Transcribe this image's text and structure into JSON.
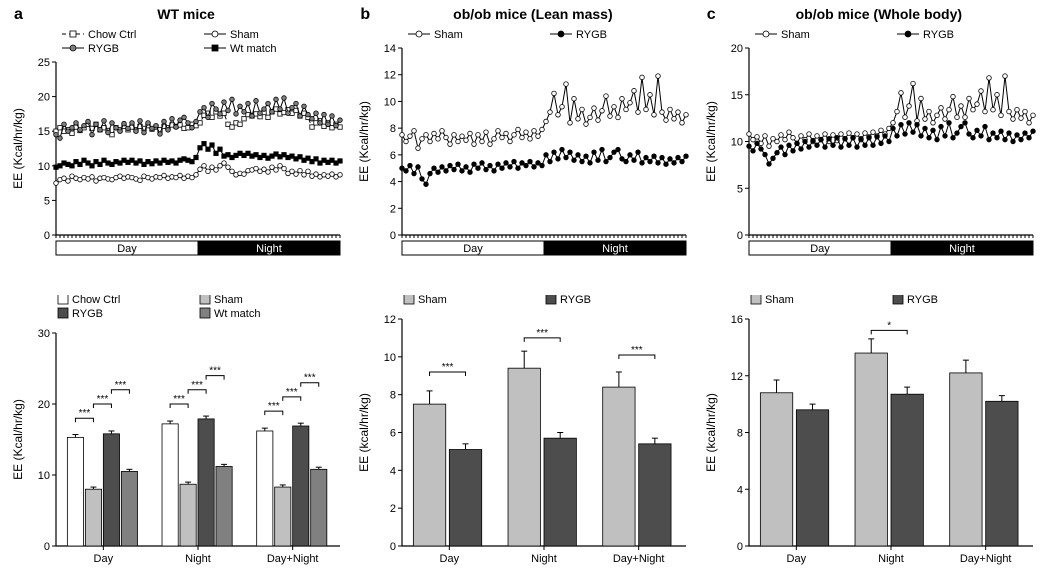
{
  "colors": {
    "white": "#ffffff",
    "black": "#000000",
    "light_gray": "#c0c0c0",
    "mid_gray": "#808080",
    "dark_gray": "#4d4d4d"
  },
  "panels": {
    "a": {
      "label": "a",
      "title": "WT mice",
      "line": {
        "ylabel": "EE (Kcal/hr/kg)",
        "ylim": [
          0,
          25
        ],
        "ytick_step": 5,
        "n_points": 72,
        "phase_labels": [
          "Day",
          "Night"
        ],
        "series": [
          {
            "name": "Chow Ctrl",
            "color": "#ffffff",
            "stroke": "#000000",
            "marker": "square",
            "dash": "4 3",
            "y": [
              15,
              15.5,
              15,
              15.2,
              14.7,
              15.6,
              15.1,
              15.5,
              16,
              15.4,
              16,
              15.2,
              15.5,
              15.1,
              14.5,
              15.5,
              15.2,
              15.7,
              15.2,
              15.6,
              15.2,
              15.7,
              15.4,
              15.8,
              15.3,
              15.6,
              15.2,
              15.7,
              15.5,
              15.9,
              15.7,
              15.9,
              15.4,
              15.5,
              16,
              15.8,
              16.2,
              17.3,
              17.6,
              17,
              17.8,
              17.2,
              17.6,
              16,
              15.6,
              16.2,
              16,
              16.8,
              17.4,
              17.2,
              17.5,
              17.1,
              17.7,
              17,
              17.8,
              18.2,
              17.5,
              17.7,
              18.1,
              17.6,
              18,
              17.2,
              17.6,
              17,
              15.6,
              16.2,
              16.5,
              15.7,
              16.2,
              15.5,
              16,
              15.6
            ]
          },
          {
            "name": "Sham",
            "color": "#ffffff",
            "stroke": "#000000",
            "marker": "circle",
            "dash": "none",
            "y": [
              7.5,
              8,
              8.2,
              7.8,
              8.5,
              8.2,
              8,
              8.3,
              8.1,
              8.4,
              7.8,
              8.2,
              8.3,
              8.1,
              8,
              8.3,
              8.5,
              8.2,
              8.4,
              8.3,
              8.1,
              7.9,
              8.5,
              8.3,
              8.1,
              8.4,
              8.3,
              8.6,
              8.2,
              8.4,
              8.3,
              8.6,
              8.2,
              8.5,
              8.3,
              8.7,
              9.5,
              10,
              9.2,
              9.8,
              9.4,
              10,
              10.4,
              9.8,
              9.2,
              8.7,
              8.9,
              8.8,
              9.3,
              9.4,
              9.6,
              9.2,
              9.5,
              9.1,
              9.8,
              9.4,
              10,
              9.6,
              8.9,
              9.2,
              8.8,
              9.3,
              8.7,
              9.2,
              8.5,
              8.8,
              8.4,
              8.7,
              8.5,
              8.8,
              8.4,
              8.7
            ]
          },
          {
            "name": "RYGB",
            "color": "#808080",
            "stroke": "#000000",
            "marker": "circle",
            "dash": "none",
            "y": [
              14.5,
              14,
              16,
              15,
              15.5,
              16.2,
              15.2,
              15.8,
              16.4,
              14.5,
              16,
              15.2,
              16.5,
              14.8,
              16.2,
              15.5,
              15,
              16.1,
              15.4,
              16.2,
              15,
              16.5,
              14.8,
              16.2,
              15.4,
              15.8,
              14.6,
              16.4,
              15.2,
              16.8,
              15.6,
              16.6,
              17,
              16.2,
              15.5,
              16.4,
              17.8,
              18.4,
              17,
              19,
              18.2,
              17.5,
              19.2,
              18,
              19.6,
              17.5,
              18.6,
              17.8,
              19,
              17.2,
              19.4,
              17.6,
              18.2,
              19,
              17.8,
              19.6,
              18.2,
              19.8,
              17.6,
              18.4,
              19,
              17.2,
              18.6,
              17.4,
              16.8,
              17.6,
              16.2,
              17.4,
              16,
              17.2,
              15.8,
              16.6
            ]
          },
          {
            "name": "Wt match",
            "color": "#000000",
            "stroke": "#000000",
            "marker": "square",
            "dash": "none",
            "y": [
              9.8,
              10,
              10.4,
              10.2,
              10,
              10.6,
              10.2,
              10.8,
              10.4,
              10,
              10.6,
              10.2,
              10.8,
              10.4,
              10.2,
              10.6,
              10.4,
              10.8,
              10.5,
              10.8,
              10.4,
              10.7,
              10.2,
              10.6,
              10.3,
              10.7,
              10.4,
              10.8,
              10.5,
              10.7,
              10.4,
              10.8,
              11,
              10.8,
              10.6,
              11.2,
              12.6,
              13.2,
              12.4,
              13,
              11.8,
              12.4,
              11.4,
              11.6,
              11.2,
              11.5,
              11.8,
              11.5,
              11.8,
              11.4,
              11.6,
              11.2,
              11.5,
              11.1,
              11.4,
              11.7,
              11.3,
              11.6,
              11.2,
              11.4,
              11,
              11.3,
              10.8,
              11.1,
              10.6,
              11,
              10.4,
              10.8,
              10.5,
              10.8,
              10.4,
              10.7
            ]
          }
        ]
      },
      "bars": {
        "ylabel": "EE (Kcal/hr/kg)",
        "ylim": [
          0,
          30
        ],
        "ytick_step": 10,
        "groups": [
          "Day",
          "Night",
          "Day+Night"
        ],
        "series": [
          {
            "name": "Chow Ctrl",
            "fill": "#ffffff"
          },
          {
            "name": "Sham",
            "fill": "#c0c0c0"
          },
          {
            "name": "RYGB",
            "fill": "#4d4d4d"
          },
          {
            "name": "Wt match",
            "fill": "#808080"
          }
        ],
        "values": [
          [
            15.3,
            8.0,
            15.8,
            10.5
          ],
          [
            17.2,
            8.7,
            17.9,
            11.2
          ],
          [
            16.2,
            8.3,
            16.9,
            10.8
          ]
        ],
        "errors": [
          [
            0.4,
            0.3,
            0.4,
            0.3
          ],
          [
            0.4,
            0.3,
            0.4,
            0.3
          ],
          [
            0.4,
            0.3,
            0.4,
            0.3
          ]
        ],
        "sig": [
          {
            "group": 0,
            "from": 0,
            "to": 1,
            "y": 18,
            "label": "***"
          },
          {
            "group": 0,
            "from": 1,
            "to": 2,
            "y": 20,
            "label": "***"
          },
          {
            "group": 0,
            "from": 2,
            "to": 3,
            "y": 22,
            "label": "***"
          },
          {
            "group": 1,
            "from": 0,
            "to": 1,
            "y": 20,
            "label": "***"
          },
          {
            "group": 1,
            "from": 1,
            "to": 2,
            "y": 22,
            "label": "***"
          },
          {
            "group": 1,
            "from": 2,
            "to": 3,
            "y": 24,
            "label": "***"
          },
          {
            "group": 2,
            "from": 0,
            "to": 1,
            "y": 19,
            "label": "***"
          },
          {
            "group": 2,
            "from": 1,
            "to": 2,
            "y": 21,
            "label": "***"
          },
          {
            "group": 2,
            "from": 2,
            "to": 3,
            "y": 23,
            "label": "***"
          }
        ]
      }
    },
    "b": {
      "label": "b",
      "title": "ob/ob mice (Lean mass)",
      "line": {
        "ylabel": "EE (Kcal/hr/kg)",
        "ylim": [
          0,
          14
        ],
        "ytick_step": 2,
        "n_points": 72,
        "phase_labels": [
          "Day",
          "Night"
        ],
        "series": [
          {
            "name": "Sham",
            "color": "#ffffff",
            "stroke": "#000000",
            "marker": "circle",
            "dash": "none",
            "y": [
              7.5,
              7,
              7.4,
              7.8,
              6.5,
              7.2,
              7.5,
              7,
              7.6,
              7.2,
              7.8,
              7.3,
              6.8,
              7.5,
              7,
              7.4,
              7.1,
              7.6,
              6.8,
              7.5,
              7,
              7.7,
              6.8,
              7.2,
              7.8,
              7.3,
              7.6,
              7,
              7.5,
              7.9,
              7.3,
              7.7,
              7.2,
              7.8,
              7.4,
              7.9,
              8.5,
              9.2,
              10.6,
              9,
              9.6,
              11.3,
              8.4,
              10.2,
              8.7,
              9.4,
              8.3,
              8.8,
              9.5,
              8.6,
              9.3,
              10.4,
              8.9,
              9.6,
              8.8,
              10.2,
              9.4,
              9.9,
              10.8,
              9.2,
              11.8,
              9.4,
              10.5,
              9,
              11.9,
              9.2,
              8.6,
              9.4,
              8.7,
              9.2,
              8.4,
              9
            ]
          },
          {
            "name": "RYGB",
            "color": "#000000",
            "stroke": "#000000",
            "marker": "circle",
            "dash": "none",
            "y": [
              5,
              4.8,
              5.2,
              4.6,
              5.1,
              4.2,
              3.8,
              4.6,
              5,
              4.7,
              5.1,
              4.8,
              5.2,
              4.9,
              5.3,
              4.8,
              5.1,
              4.7,
              5.3,
              5,
              5.4,
              4.9,
              5.2,
              4.8,
              5.3,
              5,
              5.4,
              5.1,
              5.5,
              5,
              5.4,
              5.2,
              5.5,
              5.1,
              5.4,
              5.2,
              6,
              5.5,
              6.2,
              5.7,
              6.4,
              5.8,
              6.2,
              5.6,
              6,
              5.5,
              5.9,
              5.4,
              6.2,
              5.6,
              6.4,
              5.5,
              5.8,
              6.2,
              6.4,
              5.7,
              5.5,
              6,
              5.6,
              6.2,
              5.4,
              5.8,
              5.5,
              5.9,
              5.4,
              5.8,
              5.3,
              5.7,
              5.4,
              5.8,
              5.5,
              5.9
            ]
          }
        ]
      },
      "bars": {
        "ylabel": "EE (kcal/hr/kg)",
        "ylim": [
          0,
          12
        ],
        "ytick_step": 2,
        "groups": [
          "Day",
          "Night",
          "Day+Night"
        ],
        "series": [
          {
            "name": "Sham",
            "fill": "#c0c0c0"
          },
          {
            "name": "RYGB",
            "fill": "#4d4d4d"
          }
        ],
        "values": [
          [
            7.5,
            5.1
          ],
          [
            9.4,
            5.7
          ],
          [
            8.4,
            5.4
          ]
        ],
        "errors": [
          [
            0.7,
            0.3
          ],
          [
            0.9,
            0.3
          ],
          [
            0.8,
            0.3
          ]
        ],
        "sig": [
          {
            "group": 0,
            "from": 0,
            "to": 1,
            "y": 9.2,
            "label": "***"
          },
          {
            "group": 1,
            "from": 0,
            "to": 1,
            "y": 11.0,
            "label": "***"
          },
          {
            "group": 2,
            "from": 0,
            "to": 1,
            "y": 10.1,
            "label": "***"
          }
        ]
      }
    },
    "c": {
      "label": "c",
      "title": "ob/ob mice (Whole body)",
      "line": {
        "ylabel": "EE (Kcal/hr/kg)",
        "ylim": [
          0,
          20
        ],
        "ytick_step": 5,
        "n_points": 72,
        "phase_labels": [
          "Day",
          "Night"
        ],
        "series": [
          {
            "name": "Sham",
            "color": "#ffffff",
            "stroke": "#000000",
            "marker": "circle",
            "dash": "none",
            "y": [
              10.8,
              10.2,
              10.5,
              9.8,
              10.6,
              9.5,
              10.3,
              10,
              10.7,
              10.2,
              11,
              10.4,
              9.8,
              10.6,
              10.2,
              10.8,
              10,
              10.6,
              10.2,
              10.8,
              10,
              10.7,
              10.1,
              10.8,
              10.3,
              10.9,
              10.4,
              10.8,
              10.2,
              10.9,
              10.5,
              11,
              10.6,
              11.2,
              10.8,
              11.4,
              12,
              13.2,
              15.2,
              12.6,
              13.8,
              16.2,
              12.2,
              14.6,
              12.4,
              13.2,
              12,
              12.8,
              13.6,
              12.4,
              13.4,
              14.8,
              12.6,
              13.8,
              12.6,
              14.6,
              13.4,
              14,
              15.4,
              13.2,
              16.8,
              13.4,
              15,
              12.8,
              17,
              13.2,
              12.4,
              13.4,
              12.5,
              13.2,
              12,
              12.8
            ]
          },
          {
            "name": "RYGB",
            "color": "#000000",
            "stroke": "#000000",
            "marker": "circle",
            "dash": "none",
            "y": [
              9.5,
              9,
              9.8,
              9.2,
              8.6,
              7.6,
              8.2,
              8.8,
              9.4,
              8.6,
              9.6,
              9,
              9.8,
              9.2,
              10,
              9.4,
              10.1,
              9.6,
              10.2,
              9.4,
              10.3,
              9.6,
              10.4,
              9.4,
              10.3,
              9.6,
              10.4,
              9.4,
              10.3,
              9.6,
              10.4,
              9.6,
              10.5,
              9.8,
              10.6,
              10,
              11.4,
              10.6,
              11.8,
              10.8,
              12,
              11,
              11.8,
              10.6,
              11.4,
              10.4,
              11.2,
              10.2,
              11.6,
              10.6,
              12,
              10.4,
              10.9,
              11.6,
              12,
              10.8,
              10.4,
              11.2,
              10.6,
              11.6,
              10.2,
              10.9,
              10.4,
              11.1,
              10.2,
              10.9,
              10,
              10.7,
              10.2,
              10.9,
              10.4,
              11.1
            ]
          }
        ]
      },
      "bars": {
        "ylabel": "EE (kcal/hr/kg)",
        "ylim": [
          0,
          16
        ],
        "ytick_step": 4,
        "groups": [
          "Day",
          "Night",
          "Day+Night"
        ],
        "series": [
          {
            "name": "Sham",
            "fill": "#c0c0c0"
          },
          {
            "name": "RYGB",
            "fill": "#4d4d4d"
          }
        ],
        "values": [
          [
            10.8,
            9.6
          ],
          [
            13.6,
            10.7
          ],
          [
            12.2,
            10.2
          ]
        ],
        "errors": [
          [
            0.9,
            0.4
          ],
          [
            1.0,
            0.5
          ],
          [
            0.9,
            0.4
          ]
        ],
        "sig": [
          {
            "group": 1,
            "from": 0,
            "to": 1,
            "y": 15.2,
            "label": "*"
          }
        ]
      }
    }
  }
}
